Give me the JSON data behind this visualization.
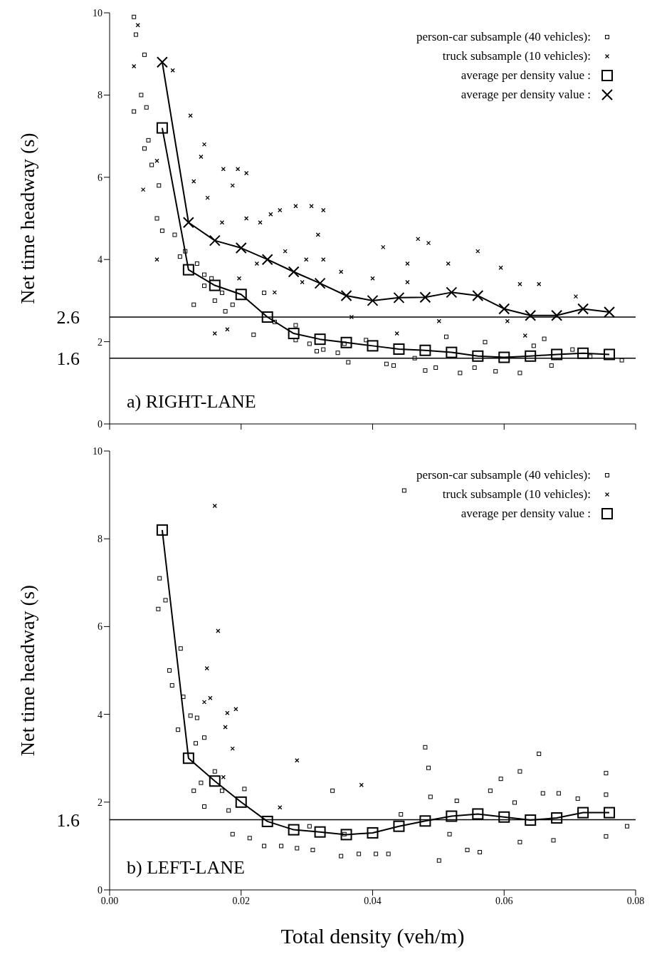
{
  "chart_data": [
    {
      "type": "scatter",
      "ylabel": "Net time headway (s)",
      "xlim": [
        0,
        0.08
      ],
      "xticks": [
        0,
        0.02,
        0.04,
        0.06,
        0.08
      ],
      "ylim": [
        0,
        10
      ],
      "yticks": [
        0,
        2,
        4,
        6,
        8,
        10
      ],
      "tick_labels": "y",
      "legend": "top right",
      "annotations": [
        "a) RIGHT-LANE"
      ],
      "ref_lines": [
        {
          "axis": "y",
          "value": 2.6,
          "label": "2.6",
          "color": "#000000"
        },
        {
          "axis": "y",
          "value": 1.6,
          "label": "1.6",
          "color": "#000000"
        }
      ],
      "series": [
        {
          "name": "person-car subsample (40 vehicles):",
          "type": "scatter",
          "marker": "square",
          "color": "#000000",
          "x": [
            0.0037,
            0.004,
            0.0053,
            0.0048,
            0.0056,
            0.0037,
            0.0059,
            0.0053,
            0.0064,
            0.0075,
            0.0072,
            0.008,
            0.0099,
            0.0115,
            0.0144,
            0.016,
            0.0176,
            0.0187,
            0.0128,
            0.0219,
            0.0235,
            0.0251,
            0.0283,
            0.0304,
            0.0325,
            0.0347,
            0.0363,
            0.039,
            0.0421,
            0.0432,
            0.0464,
            0.048,
            0.0496,
            0.0512,
            0.0533,
            0.0555,
            0.0571,
            0.0587,
            0.0624,
            0.0645,
            0.0661,
            0.0672,
            0.0704,
            0.0731,
            0.0779,
            0.0283,
            0.0315,
            0.0357,
            0.0144,
            0.0133,
            0.0155,
            0.0171,
            0.0107
          ],
          "values": [
            9.9,
            9.47,
            8.98,
            8.0,
            7.7,
            7.6,
            6.9,
            6.7,
            6.3,
            5.8,
            5.0,
            4.7,
            4.6,
            4.2,
            3.36,
            3.0,
            2.74,
            2.9,
            2.9,
            2.17,
            3.19,
            2.48,
            2.4,
            1.95,
            1.81,
            1.73,
            1.5,
            2.04,
            1.46,
            1.42,
            1.6,
            1.3,
            1.37,
            2.12,
            1.24,
            1.37,
            1.99,
            1.28,
            1.24,
            1.9,
            2.07,
            1.42,
            1.81,
            1.64,
            1.55,
            2.04,
            1.77,
            1.95,
            3.63,
            3.9,
            3.54,
            3.19,
            4.07
          ]
        },
        {
          "name": "truck subsample (10 vehicles):",
          "type": "scatter",
          "marker": "cross",
          "color": "#000000",
          "x": [
            0.0043,
            0.0037,
            0.0096,
            0.0123,
            0.0072,
            0.0051,
            0.0072,
            0.0144,
            0.0139,
            0.0173,
            0.0195,
            0.0208,
            0.0187,
            0.0128,
            0.0149,
            0.0245,
            0.0259,
            0.0283,
            0.0307,
            0.0325,
            0.0317,
            0.0208,
            0.0171,
            0.0229,
            0.0267,
            0.0299,
            0.0325,
            0.0352,
            0.0416,
            0.0469,
            0.0485,
            0.056,
            0.0453,
            0.0515,
            0.0595,
            0.0624,
            0.0653,
            0.0709,
            0.016,
            0.0179,
            0.0632,
            0.0368,
            0.0501,
            0.0605,
            0.0437,
            0.0251,
            0.0293,
            0.0197,
            0.0224,
            0.04,
            0.0453
          ],
          "values": [
            9.7,
            8.7,
            8.6,
            7.5,
            6.4,
            5.7,
            4.0,
            6.8,
            6.5,
            6.2,
            6.2,
            6.1,
            5.8,
            5.9,
            5.5,
            5.1,
            5.2,
            5.3,
            5.3,
            5.2,
            4.6,
            5.0,
            4.9,
            4.9,
            4.2,
            4.0,
            4.0,
            3.7,
            4.3,
            4.5,
            4.4,
            4.2,
            3.9,
            3.9,
            3.8,
            3.4,
            3.4,
            3.1,
            2.2,
            2.3,
            2.15,
            2.6,
            2.5,
            2.5,
            2.2,
            3.2,
            3.45,
            3.54,
            3.9,
            3.54,
            3.45
          ]
        },
        {
          "name": "average per density value :",
          "type": "line",
          "marker": "square",
          "color": "#000000",
          "x": [
            0.008,
            0.012,
            0.016,
            0.02,
            0.024,
            0.028,
            0.032,
            0.036,
            0.04,
            0.044,
            0.048,
            0.052,
            0.056,
            0.06,
            0.064,
            0.068,
            0.072,
            0.076
          ],
          "values": [
            7.2,
            3.75,
            3.37,
            3.15,
            2.6,
            2.2,
            2.06,
            1.98,
            1.9,
            1.82,
            1.79,
            1.74,
            1.65,
            1.62,
            1.65,
            1.69,
            1.72,
            1.69
          ]
        },
        {
          "name": "average per density value :",
          "type": "line",
          "marker": "cross",
          "color": "#000000",
          "x": [
            0.008,
            0.012,
            0.016,
            0.02,
            0.024,
            0.028,
            0.032,
            0.036,
            0.04,
            0.044,
            0.048,
            0.052,
            0.056,
            0.06,
            0.064,
            0.068,
            0.072,
            0.076
          ],
          "values": [
            8.8,
            4.9,
            4.46,
            4.28,
            4.0,
            3.7,
            3.42,
            3.12,
            3.0,
            3.07,
            3.08,
            3.2,
            3.12,
            2.8,
            2.64,
            2.64,
            2.8,
            2.72
          ]
        }
      ]
    },
    {
      "type": "scatter",
      "ylabel": "Net time headway (s)",
      "xlabel": "Total density (veh/m)",
      "xlim": [
        0,
        0.08
      ],
      "xticks": [
        {
          "value": 0,
          "label": "0.00"
        },
        {
          "value": 0.02,
          "label": "0.02"
        },
        {
          "value": 0.04,
          "label": "0.04"
        },
        {
          "value": 0.06,
          "label": "0.06"
        },
        {
          "value": 0.08,
          "label": "0.08"
        }
      ],
      "ylim": [
        0,
        10
      ],
      "yticks": [
        0,
        2,
        4,
        6,
        8,
        10
      ],
      "legend": "top right",
      "annotations": [
        "b) LEFT-LANE"
      ],
      "ref_lines": [
        {
          "axis": "y",
          "value": 1.6,
          "label": "1.6",
          "color": "#000000"
        }
      ],
      "series": [
        {
          "name": "person-car subsample (40 vehicles):",
          "type": "scatter",
          "marker": "square",
          "color": "#000000",
          "x": [
            0.0076,
            0.0074,
            0.0085,
            0.0091,
            0.0108,
            0.0095,
            0.0104,
            0.0112,
            0.0123,
            0.0133,
            0.0144,
            0.0131,
            0.0139,
            0.0128,
            0.0144,
            0.016,
            0.0171,
            0.0181,
            0.0187,
            0.0205,
            0.0213,
            0.0235,
            0.0261,
            0.0285,
            0.0309,
            0.0339,
            0.0352,
            0.0379,
            0.0405,
            0.0424,
            0.0443,
            0.048,
            0.0485,
            0.0488,
            0.0501,
            0.0528,
            0.0544,
            0.0563,
            0.0579,
            0.0595,
            0.0616,
            0.0624,
            0.0653,
            0.0659,
            0.0683,
            0.0675,
            0.0712,
            0.0755,
            0.0755,
            0.0755,
            0.0787,
            0.0448,
            0.0517,
            0.0624,
            0.0304,
            0.0357
          ],
          "values": [
            7.1,
            6.4,
            6.6,
            5.0,
            5.5,
            4.66,
            3.65,
            4.4,
            3.97,
            3.92,
            3.47,
            3.34,
            2.44,
            2.26,
            1.9,
            2.7,
            2.26,
            1.81,
            1.27,
            2.3,
            1.18,
            1.0,
            1.0,
            0.95,
            0.91,
            2.26,
            0.77,
            0.82,
            0.82,
            0.82,
            1.72,
            3.25,
            2.78,
            2.12,
            0.67,
            2.03,
            0.91,
            0.86,
            2.26,
            2.53,
            1.99,
            2.7,
            3.1,
            2.2,
            2.2,
            1.13,
            2.08,
            2.66,
            2.17,
            1.22,
            1.45,
            9.1,
            1.27,
            1.09,
            1.45,
            1.27
          ]
        },
        {
          "name": "truck subsample (10 vehicles):",
          "type": "scatter",
          "marker": "cross",
          "color": "#000000",
          "x": [
            0.016,
            0.0165,
            0.0148,
            0.0153,
            0.0144,
            0.0179,
            0.0192,
            0.0176,
            0.0187,
            0.0285,
            0.0383,
            0.0259,
            0.0173
          ],
          "values": [
            8.75,
            5.9,
            5.05,
            4.37,
            4.28,
            4.03,
            4.12,
            3.71,
            3.22,
            2.95,
            2.39,
            1.88,
            2.57
          ]
        },
        {
          "name": "average per density value :",
          "type": "line",
          "marker": "square",
          "color": "#000000",
          "x": [
            0.008,
            0.012,
            0.016,
            0.02,
            0.024,
            0.028,
            0.032,
            0.036,
            0.04,
            0.044,
            0.048,
            0.052,
            0.056,
            0.06,
            0.064,
            0.068,
            0.072,
            0.076
          ],
          "values": [
            8.2,
            3.0,
            2.48,
            2.0,
            1.56,
            1.37,
            1.32,
            1.26,
            1.3,
            1.45,
            1.57,
            1.68,
            1.73,
            1.66,
            1.59,
            1.64,
            1.76,
            1.76
          ]
        }
      ]
    }
  ]
}
